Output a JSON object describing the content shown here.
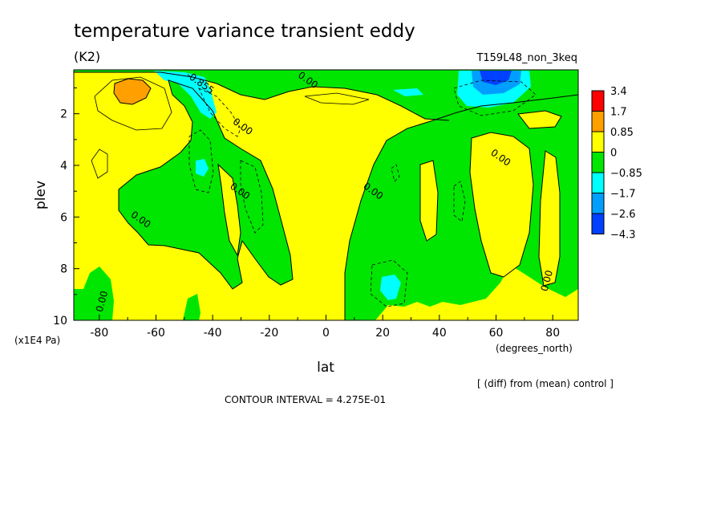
{
  "chart_data": {
    "type": "heatmap",
    "title": "temperature variance transient eddy",
    "units": "(K2)",
    "run_label": "T159L48_non_3keq",
    "xlabel": "lat",
    "x_unit_label": "(degrees_north)",
    "ylabel": "plev",
    "y_unit_label": "(x1E4 Pa)",
    "subtitle_right": "[ (diff) from (mean) control ]",
    "contour_interval": "CONTOUR INTERVAL = 4.275E-01",
    "x_ticks": [
      "-80",
      "-60",
      "-40",
      "-20",
      "0",
      "20",
      "40",
      "60",
      "80"
    ],
    "x_tick_values": [
      -80,
      -60,
      -40,
      -20,
      0,
      20,
      40,
      60,
      80
    ],
    "y_ticks": [
      "2",
      "4",
      "6",
      "8",
      "10"
    ],
    "y_tick_values": [
      2,
      4,
      6,
      8,
      10
    ],
    "xlim": [
      -89,
      89
    ],
    "ylim": [
      10,
      0.3
    ],
    "y_inverted": true,
    "contour_labels": [
      {
        "text": "0.00",
        "lat": -7,
        "plev": 0.8
      },
      {
        "text": "-0.855",
        "lat": -45,
        "plev": 0.9
      },
      {
        "text": "0.00",
        "lat": -30,
        "plev": 2.6
      },
      {
        "text": "0.00",
        "lat": -31,
        "plev": 5.1
      },
      {
        "text": "0.00",
        "lat": -66,
        "plev": 6.2
      },
      {
        "text": "0.00",
        "lat": -78,
        "plev": 9.3
      },
      {
        "text": "0.00",
        "lat": 16,
        "plev": 5.1
      },
      {
        "text": "0.00",
        "lat": 61,
        "plev": 3.8
      },
      {
        "text": "0.00",
        "lat": 79,
        "plev": 8.5
      }
    ],
    "colorbar": {
      "labels": [
        "3.4",
        "1.7",
        "0.85",
        "0",
        "−0.85",
        "−1.7",
        "−2.6",
        "−4.3"
      ],
      "colors": [
        "#ff0000",
        "#ff9f00",
        "#ffff00",
        "#00e600",
        "#00ffff",
        "#009fff",
        "#0040ff"
      ]
    },
    "colors": {
      "positive_weak": "#ffff00",
      "positive_mid": "#ff9f00",
      "negative_weak": "#00e600",
      "negative_mid": "#00ffff",
      "negative_strong": "#009fff",
      "negative_max": "#0040ff"
    }
  }
}
